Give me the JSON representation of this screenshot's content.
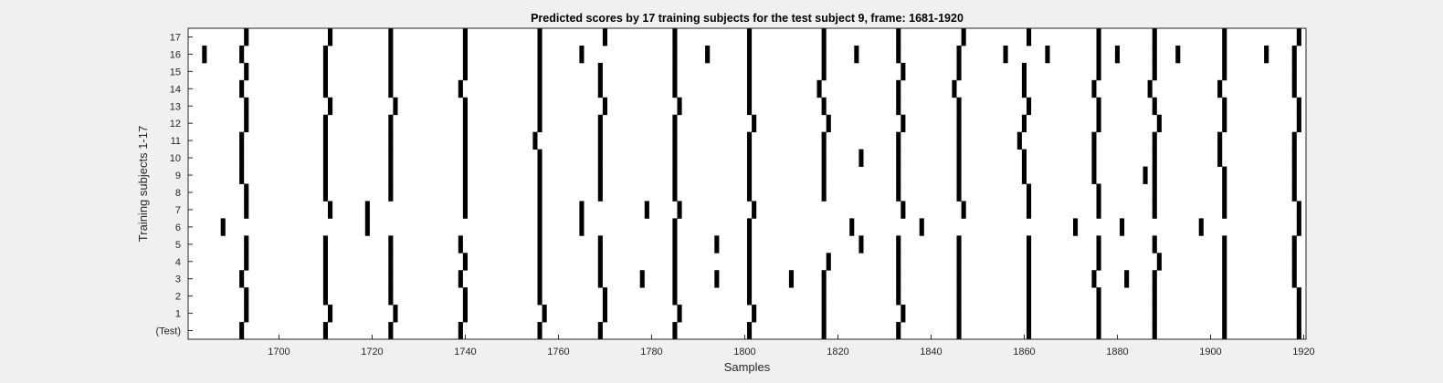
{
  "chart_data": {
    "type": "heatmap",
    "title": "Predicted scores by 17 training subjects for the test subject 9, frame: 1681-1920",
    "xlabel": "Samples",
    "ylabel": "Training subjects 1-17",
    "xlim": [
      1681,
      1920
    ],
    "x_ticks": [
      1700,
      1720,
      1740,
      1760,
      1780,
      1800,
      1820,
      1840,
      1860,
      1880,
      1900,
      1920
    ],
    "rows": [
      "(Test)",
      "1",
      "2",
      "3",
      "4",
      "5",
      "6",
      "7",
      "8",
      "9",
      "10",
      "11",
      "12",
      "13",
      "14",
      "15",
      "16",
      "17"
    ],
    "grid": false,
    "colors": {
      "event": "#000000",
      "background": "#ffffff",
      "figure": "#f0f0f0"
    },
    "series": [
      {
        "row": "(Test)",
        "x": [
          1692,
          1710,
          1724,
          1739,
          1756,
          1769,
          1785,
          1801,
          1817,
          1833,
          1846,
          1861,
          1876,
          1888,
          1903,
          1919
        ]
      },
      {
        "row": "1",
        "x": [
          1693,
          1711,
          1725,
          1740,
          1757,
          1770,
          1786,
          1802,
          1817,
          1834,
          1846,
          1861,
          1876,
          1888,
          1903,
          1919
        ]
      },
      {
        "row": "2",
        "x": [
          1693,
          1710,
          1724,
          1740,
          1756,
          1770,
          1785,
          1801,
          1817,
          1833,
          1846,
          1861,
          1876,
          1888,
          1903,
          1919
        ]
      },
      {
        "row": "3",
        "x": [
          1692,
          1710,
          1724,
          1739,
          1756,
          1769,
          1778,
          1785,
          1794,
          1801,
          1810,
          1817,
          1833,
          1846,
          1861,
          1875,
          1882,
          1888,
          1903,
          1918
        ]
      },
      {
        "row": "4",
        "x": [
          1693,
          1710,
          1724,
          1740,
          1756,
          1769,
          1785,
          1801,
          1818,
          1833,
          1846,
          1861,
          1876,
          1889,
          1903,
          1918
        ]
      },
      {
        "row": "5",
        "x": [
          1693,
          1710,
          1724,
          1739,
          1756,
          1769,
          1785,
          1794,
          1801,
          1825,
          1833,
          1846,
          1861,
          1876,
          1888,
          1903,
          1918
        ]
      },
      {
        "row": "6",
        "x": [
          1688,
          1719,
          1756,
          1765,
          1785,
          1801,
          1823,
          1838,
          1871,
          1881,
          1898,
          1919
        ]
      },
      {
        "row": "7",
        "x": [
          1693,
          1711,
          1719,
          1740,
          1756,
          1765,
          1779,
          1786,
          1802,
          1834,
          1847,
          1861,
          1876,
          1888,
          1903,
          1919
        ]
      },
      {
        "row": "8",
        "x": [
          1693,
          1710,
          1724,
          1740,
          1756,
          1769,
          1785,
          1801,
          1817,
          1833,
          1846,
          1861,
          1876,
          1888,
          1903,
          1918
        ]
      },
      {
        "row": "9",
        "x": [
          1692,
          1710,
          1724,
          1740,
          1756,
          1769,
          1785,
          1801,
          1817,
          1833,
          1846,
          1860,
          1875,
          1886,
          1888,
          1903,
          1918
        ]
      },
      {
        "row": "10",
        "x": [
          1692,
          1710,
          1724,
          1740,
          1756,
          1769,
          1785,
          1801,
          1817,
          1825,
          1833,
          1846,
          1860,
          1875,
          1888,
          1902,
          1918
        ]
      },
      {
        "row": "11",
        "x": [
          1692,
          1710,
          1724,
          1740,
          1755,
          1769,
          1785,
          1801,
          1817,
          1833,
          1846,
          1859,
          1875,
          1888,
          1902,
          1918
        ]
      },
      {
        "row": "12",
        "x": [
          1693,
          1710,
          1724,
          1740,
          1756,
          1769,
          1785,
          1802,
          1818,
          1834,
          1846,
          1860,
          1876,
          1889,
          1903,
          1919
        ]
      },
      {
        "row": "13",
        "x": [
          1693,
          1711,
          1725,
          1740,
          1756,
          1770,
          1786,
          1801,
          1817,
          1833,
          1846,
          1861,
          1876,
          1888,
          1903,
          1919
        ]
      },
      {
        "row": "14",
        "x": [
          1692,
          1710,
          1724,
          1739,
          1756,
          1769,
          1785,
          1801,
          1816,
          1833,
          1845,
          1860,
          1875,
          1887,
          1902,
          1918
        ]
      },
      {
        "row": "15",
        "x": [
          1693,
          1710,
          1724,
          1740,
          1756,
          1769,
          1785,
          1801,
          1817,
          1834,
          1846,
          1860,
          1876,
          1888,
          1903,
          1918
        ]
      },
      {
        "row": "16",
        "x": [
          1684,
          1692,
          1710,
          1724,
          1740,
          1756,
          1765,
          1785,
          1792,
          1801,
          1817,
          1824,
          1833,
          1846,
          1856,
          1865,
          1876,
          1880,
          1888,
          1893,
          1903,
          1912,
          1918
        ]
      },
      {
        "row": "17",
        "x": [
          1693,
          1711,
          1724,
          1740,
          1756,
          1770,
          1785,
          1801,
          1817,
          1833,
          1847,
          1861,
          1876,
          1888,
          1903,
          1919
        ]
      }
    ]
  }
}
